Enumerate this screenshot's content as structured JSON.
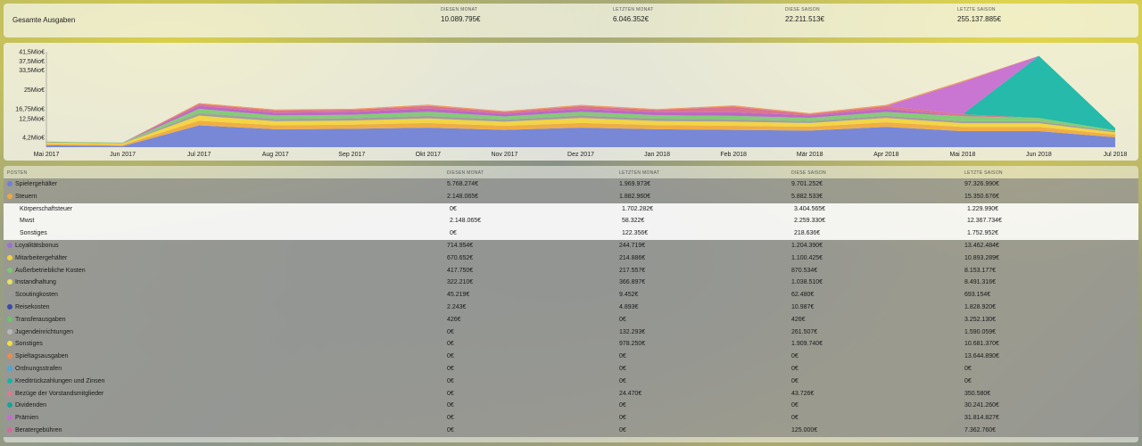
{
  "summary": {
    "title": "Gesamte Ausgaben",
    "stats": [
      {
        "label": "Diesen Monat",
        "value": "10.089.795€"
      },
      {
        "label": "Letzten Monat",
        "value": "6.046.352€"
      },
      {
        "label": "Diese Saison",
        "value": "22.211.513€"
      },
      {
        "label": "Letzte Saison",
        "value": "255.137.885€"
      }
    ]
  },
  "chart_data": {
    "type": "area",
    "stacked": true,
    "categories": [
      "Mai 2017",
      "Jun 2017",
      "Jul 2017",
      "Aug 2017",
      "Sep 2017",
      "Okt 2017",
      "Nov 2017",
      "Dez 2017",
      "Jan 2018",
      "Feb 2018",
      "Mär 2018",
      "Apr 2018",
      "Mai 2018",
      "Jun 2018",
      "Jul 2018"
    ],
    "ytick_labels": [
      "4,2Mio€",
      "12,5Mio€",
      "16,75Mio€",
      "25Mio€",
      "33,5Mio€",
      "37,5Mio€",
      "41,5Mio€"
    ],
    "ytick_values": [
      4.2,
      12.5,
      16.75,
      25,
      33.5,
      37.5,
      41.5
    ],
    "ylim": [
      0,
      41.5
    ],
    "series": [
      {
        "color": "#6f7fd6",
        "values": [
          0.8,
          0.5,
          9.5,
          7.8,
          8.0,
          8.5,
          7.5,
          8.5,
          7.8,
          7.5,
          7.2,
          8.8,
          7.0,
          7.0,
          4.3
        ]
      },
      {
        "color": "#f0a83a",
        "values": [
          0.6,
          0.5,
          2.0,
          1.7,
          1.8,
          2.0,
          1.8,
          2.0,
          1.8,
          1.8,
          1.7,
          2.0,
          1.8,
          1.8,
          1.2
        ]
      },
      {
        "color": "#f3d23a",
        "values": [
          0.6,
          0.6,
          2.2,
          1.8,
          1.8,
          2.0,
          1.8,
          2.2,
          1.8,
          1.8,
          1.6,
          1.9,
          1.6,
          1.6,
          0.9
        ]
      },
      {
        "color": "#9a9a9a",
        "values": [
          0.2,
          0.2,
          1.2,
          1.0,
          1.0,
          1.1,
          0.9,
          1.1,
          1.0,
          1.0,
          0.9,
          1.0,
          0.9,
          0.9,
          0.5
        ]
      },
      {
        "color": "#7bc96f",
        "values": [
          0.2,
          0.2,
          1.8,
          1.5,
          1.5,
          1.8,
          1.4,
          1.6,
          1.5,
          1.5,
          1.4,
          1.6,
          2.2,
          1.4,
          0.4
        ]
      },
      {
        "color": "#b95cc7",
        "values": [
          0.0,
          0.0,
          1.3,
          1.2,
          1.2,
          1.4,
          1.1,
          1.3,
          1.3,
          1.6,
          1.0,
          1.4,
          0.0,
          0.0,
          0.0
        ]
      },
      {
        "color": "#d96a8a",
        "values": [
          0.0,
          0.0,
          0.8,
          1.0,
          1.0,
          1.2,
          0.8,
          1.2,
          1.0,
          2.5,
          0.6,
          1.2,
          0.8,
          0.0,
          0.0
        ]
      },
      {
        "color": "#14b5a5",
        "values": [
          0.0,
          0.0,
          0.0,
          0.0,
          0.0,
          0.0,
          0.0,
          0.0,
          0.0,
          0.0,
          0.0,
          0.0,
          0.0,
          27.0,
          1.0
        ]
      },
      {
        "color": "#c56ad1",
        "values": [
          0.0,
          0.0,
          0.0,
          0.0,
          0.0,
          0.0,
          0.0,
          0.0,
          0.0,
          0.0,
          0.0,
          0.0,
          14.0,
          0.0,
          0.0
        ]
      },
      {
        "color": "#f2955a",
        "values": [
          0.0,
          0.0,
          0.4,
          0.4,
          0.4,
          0.5,
          0.4,
          0.5,
          0.4,
          0.5,
          0.4,
          0.5,
          0.5,
          0.0,
          0.0
        ]
      }
    ]
  },
  "table": {
    "headers": [
      "Posten",
      "Diesen Monat",
      "Letzten Monat",
      "Diese Saison",
      "Letzte Saison"
    ],
    "rows": [
      {
        "name": "Spielergehälter",
        "color": "#6f7fd6",
        "style": "dark",
        "values": [
          "5.768.274€",
          "1.969.973€",
          "9.701.252€",
          "97.326.990€"
        ]
      },
      {
        "name": "Steuern",
        "color": "#f0a83a",
        "style": "dark",
        "values": [
          "2.148.065€",
          "1.882.960€",
          "5.882.533€",
          "15.350.676€"
        ]
      },
      {
        "name": "Körperschaftsteuer",
        "color": "",
        "style": "light sub",
        "values": [
          "0€",
          "1.702.282€",
          "3.404.565€",
          "1.229.990€"
        ]
      },
      {
        "name": "Mwst",
        "color": "",
        "style": "light sub",
        "values": [
          "2.148.065€",
          "58.322€",
          "2.259.330€",
          "12.367.734€"
        ]
      },
      {
        "name": "Sonstiges",
        "color": "",
        "style": "light sub",
        "values": [
          "0€",
          "122.356€",
          "218.636€",
          "1.752.952€"
        ]
      },
      {
        "name": "Loyalitätsbonus",
        "color": "#9a6fd6",
        "style": "dark",
        "values": [
          "714.954€",
          "244.719€",
          "1.204.390€",
          "13.462.484€"
        ]
      },
      {
        "name": "Mitarbeitergehälter",
        "color": "#f3d23a",
        "style": "dark",
        "values": [
          "670.652€",
          "214.886€",
          "1.100.425€",
          "10.893.289€"
        ]
      },
      {
        "name": "Außerbetriebliche Kosten",
        "color": "#7bc96f",
        "style": "dark",
        "values": [
          "417.750€",
          "217.557€",
          "870.534€",
          "8.153.177€"
        ]
      },
      {
        "name": "Instandhaltung",
        "color": "#e6e35a",
        "style": "dark",
        "values": [
          "322.210€",
          "366.897€",
          "1.038.510€",
          "8.491.316€"
        ]
      },
      {
        "name": "Scoutingkosten",
        "color": "#9a9a9a",
        "style": "dark",
        "values": [
          "45.219€",
          "9.452€",
          "62.480€",
          "693.154€"
        ]
      },
      {
        "name": "Reisekosten",
        "color": "#3a4aa8",
        "style": "dark",
        "values": [
          "2.243€",
          "4.893€",
          "10.987€",
          "1.828.920€"
        ]
      },
      {
        "name": "Transferausgaben",
        "color": "#6cc46a",
        "style": "dark",
        "values": [
          "426€",
          "0€",
          "426€",
          "3.252.130€"
        ]
      },
      {
        "name": "Jugendeinrichtungen",
        "color": "#b8b8b8",
        "style": "dark",
        "values": [
          "0€",
          "132.293€",
          "261.507€",
          "1.590.059€"
        ]
      },
      {
        "name": "Sonstiges",
        "color": "#f3e03a",
        "style": "dark",
        "values": [
          "0€",
          "978.250€",
          "1.909.740€",
          "10.681.370€"
        ]
      },
      {
        "name": "Spieltagsausgaben",
        "color": "#f08a4a",
        "style": "dark",
        "values": [
          "0€",
          "0€",
          "0€",
          "13.644.890€"
        ]
      },
      {
        "name": "Ordnungsstrafen",
        "color": "#4aa8d6",
        "style": "dark",
        "values": [
          "0€",
          "0€",
          "0€",
          "0€"
        ]
      },
      {
        "name": "Kreditrückzahlungen und Zinsen",
        "color": "#14b5a5",
        "style": "dark",
        "values": [
          "0€",
          "0€",
          "0€",
          "0€"
        ]
      },
      {
        "name": "Bezüge der Vorstandsmitglieder",
        "color": "#e07a8a",
        "style": "dark",
        "values": [
          "0€",
          "24.470€",
          "43.726€",
          "350.580€"
        ]
      },
      {
        "name": "Dividenden",
        "color": "#14a595",
        "style": "dark",
        "values": [
          "0€",
          "0€",
          "0€",
          "30.241.260€"
        ]
      },
      {
        "name": "Prämien",
        "color": "#c56ad1",
        "style": "dark",
        "values": [
          "0€",
          "0€",
          "0€",
          "31.814.827€"
        ]
      },
      {
        "name": "Beratergebühren",
        "color": "#d66a9a",
        "style": "dark",
        "values": [
          "0€",
          "0€",
          "125.000€",
          "7.362.760€"
        ]
      }
    ]
  }
}
